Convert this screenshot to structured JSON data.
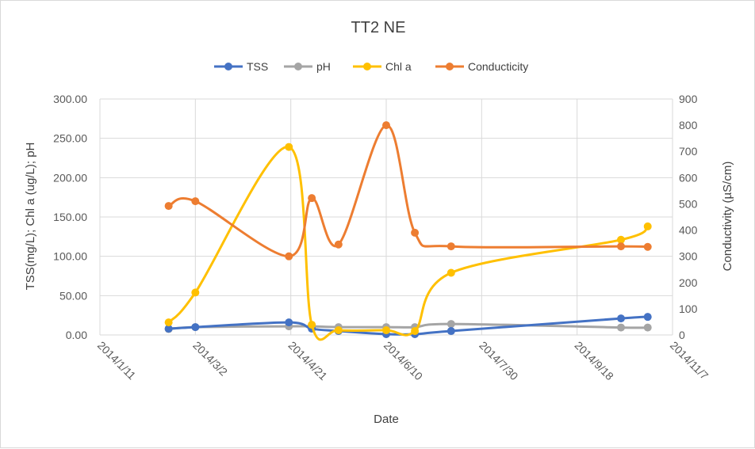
{
  "chart_data": {
    "type": "line",
    "title": "TT2 NE",
    "xlabel": "Date",
    "ylabel_left": "TSS(mg/L); Chl a (ug/L); pH",
    "ylabel_right": "Conductivity  (µS/cm)",
    "x_ticks": [
      "2014/1/11",
      "2014/3/2",
      "2014/4/21",
      "2014/6/10",
      "2014/7/30",
      "2014/9/18",
      "2014/11/7"
    ],
    "x_range": [
      "2014/1/11",
      "2014/11/7"
    ],
    "y_left_ticks": [
      "0.00",
      "50.00",
      "100.00",
      "150.00",
      "200.00",
      "250.00",
      "300.00"
    ],
    "y_left_range": [
      0,
      300
    ],
    "y_right_ticks": [
      "0",
      "100",
      "200",
      "300",
      "400",
      "500",
      "600",
      "700",
      "800",
      "900"
    ],
    "y_right_range": [
      0,
      900
    ],
    "grid": true,
    "legend_position": "top",
    "series": [
      {
        "name": "TSS",
        "color": "#4472C4",
        "axis": "left",
        "points": [
          [
            "2014/2/16",
            8
          ],
          [
            "2014/3/2",
            10
          ],
          [
            "2014/4/20",
            16
          ],
          [
            "2014/5/2",
            8
          ],
          [
            "2014/5/16",
            5
          ],
          [
            "2014/6/10",
            1
          ],
          [
            "2014/6/25",
            1
          ],
          [
            "2014/7/14",
            5
          ],
          [
            "2014/10/11",
            21
          ],
          [
            "2014/10/25",
            23
          ]
        ]
      },
      {
        "name": "pH",
        "color": "#A5A5A5",
        "axis": "left",
        "points": [
          [
            "2014/2/16",
            7.5
          ],
          [
            "2014/3/2",
            10
          ],
          [
            "2014/4/20",
            11
          ],
          [
            "2014/5/2",
            11
          ],
          [
            "2014/5/16",
            10
          ],
          [
            "2014/6/10",
            10
          ],
          [
            "2014/6/25",
            10
          ],
          [
            "2014/7/14",
            14
          ],
          [
            "2014/10/11",
            9.5
          ],
          [
            "2014/10/25",
            9.5
          ]
        ]
      },
      {
        "name": "Chl a",
        "color": "#FFC000",
        "axis": "left",
        "points": [
          [
            "2014/2/16",
            16
          ],
          [
            "2014/3/2",
            54
          ],
          [
            "2014/4/20",
            239
          ],
          [
            "2014/5/2",
            13
          ],
          [
            "2014/5/16",
            6
          ],
          [
            "2014/6/10",
            6
          ],
          [
            "2014/6/25",
            5
          ],
          [
            "2014/7/14",
            79
          ],
          [
            "2014/10/11",
            121
          ],
          [
            "2014/10/25",
            138
          ]
        ]
      },
      {
        "name": "Conducticity",
        "color": "#ED7D31",
        "axis": "right",
        "points": [
          [
            "2014/2/16",
            492
          ],
          [
            "2014/3/2",
            510
          ],
          [
            "2014/4/20",
            300
          ],
          [
            "2014/5/2",
            522
          ],
          [
            "2014/5/16",
            345
          ],
          [
            "2014/6/10",
            800
          ],
          [
            "2014/6/25",
            390
          ],
          [
            "2014/7/14",
            338
          ],
          [
            "2014/10/11",
            338
          ],
          [
            "2014/10/25",
            336
          ]
        ]
      }
    ]
  }
}
